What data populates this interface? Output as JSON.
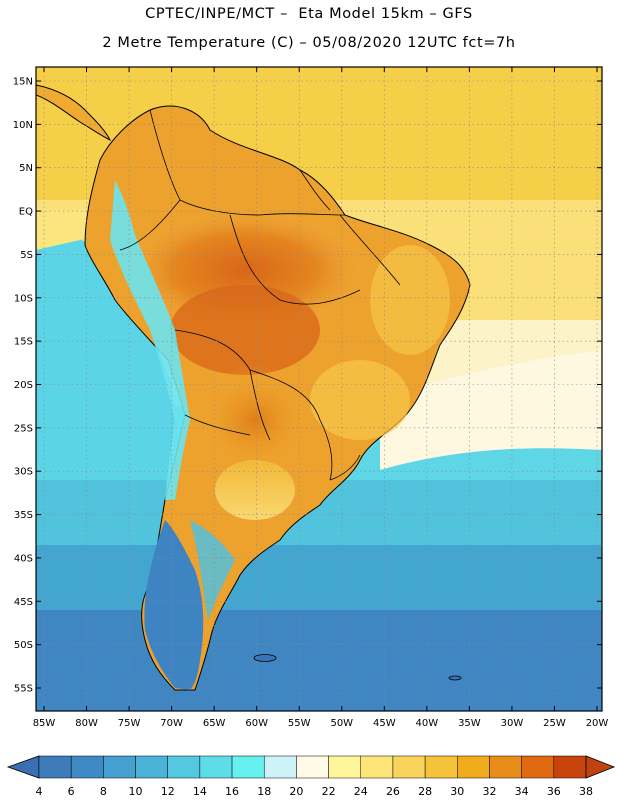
{
  "header": {
    "line1": "CPTEC/INPE/MCT –  Eta Model 15km – GFS",
    "line2": "2 Metre Temperature (C) – 05/08/2020 12UTC fct=7h"
  },
  "map": {
    "lat_labels": [
      "15N",
      "10N",
      "5N",
      "EQ",
      "5S",
      "10S",
      "15S",
      "20S",
      "25S",
      "30S",
      "35S",
      "40S",
      "45S",
      "50S",
      "55S"
    ],
    "lon_labels": [
      "85W",
      "80W",
      "75W",
      "70W",
      "65W",
      "60W",
      "55W",
      "50W",
      "45W",
      "40W",
      "35W",
      "30W",
      "25W",
      "20W"
    ],
    "lat_values": [
      15,
      10,
      5,
      0,
      -5,
      -10,
      -15,
      -20,
      -25,
      -30,
      -35,
      -40,
      -45,
      -50,
      -55
    ],
    "lon_values": [
      -85,
      -80,
      -75,
      -70,
      -65,
      -60,
      -55,
      -50,
      -45,
      -40,
      -35,
      -30,
      -25,
      -20
    ]
  },
  "colorbar": {
    "labels": [
      "4",
      "6",
      "8",
      "10",
      "12",
      "14",
      "16",
      "18",
      "20",
      "22",
      "24",
      "26",
      "28",
      "30",
      "32",
      "34",
      "36",
      "38"
    ],
    "colors": [
      "#3d7cb8",
      "#3f8ac4",
      "#45a0cf",
      "#4cb3d8",
      "#54c8e0",
      "#5cdde8",
      "#66f0f0",
      "#cdf2f8",
      "#fff9e8",
      "#fff59a",
      "#fde57a",
      "#f9d45c",
      "#f5c23c",
      "#f0ac1c",
      "#e88c1a",
      "#e06a10",
      "#c9440c"
    ],
    "low_color": "#3b6fb3",
    "high_color": "#c0420f"
  }
}
